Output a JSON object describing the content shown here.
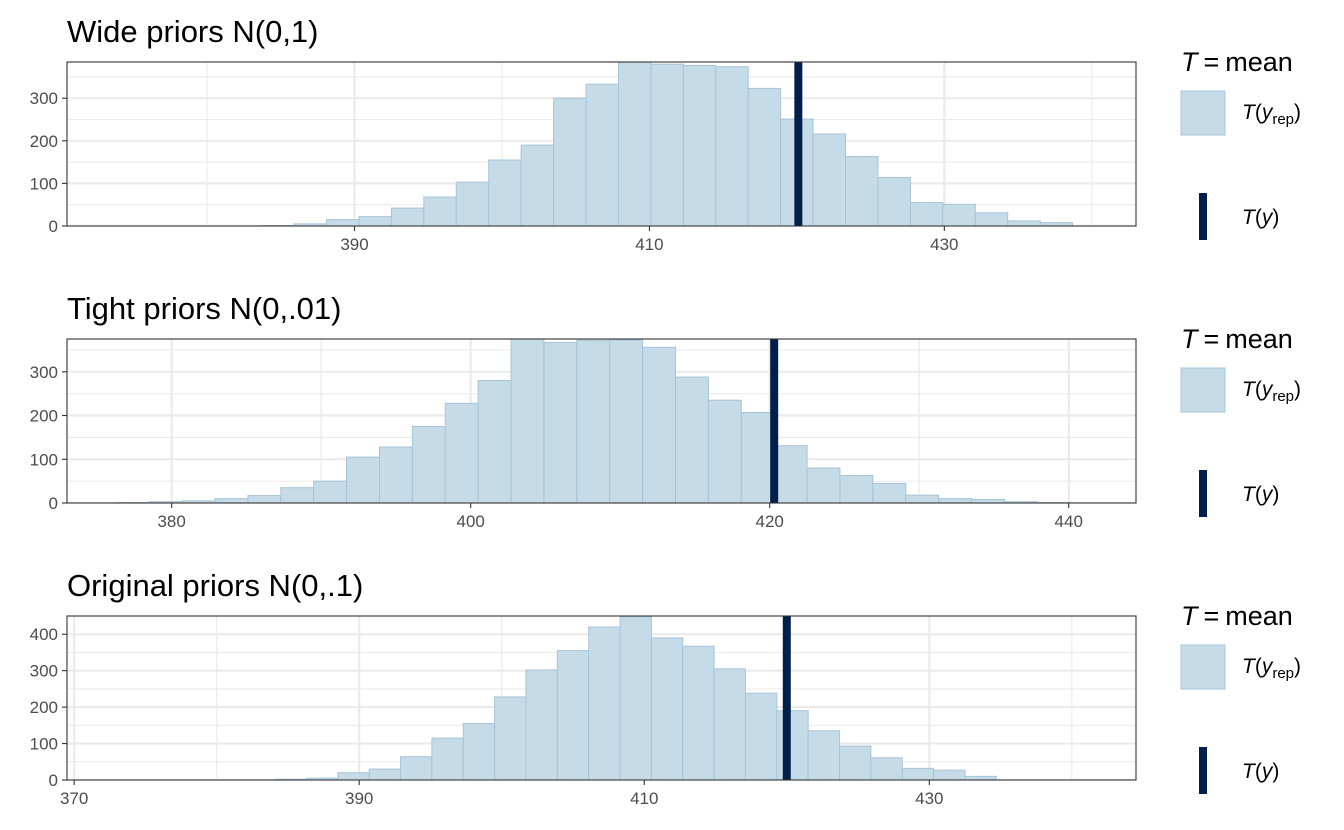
{
  "chart_data": [
    {
      "type": "bar",
      "title": "Wide priors N(0,1)",
      "xlim": [
        370.5,
        443
      ],
      "ylim": [
        0,
        385
      ],
      "x_ticks": [
        390,
        410,
        430
      ],
      "y_ticks": [
        0,
        100,
        200,
        300
      ],
      "bin_width": 2.2,
      "bin_starts": [
        383.7,
        385.9,
        388.1,
        390.3,
        392.5,
        394.7,
        396.9,
        399.1,
        401.3,
        403.5,
        405.7,
        407.9,
        410.1,
        412.3,
        414.5,
        416.7,
        418.9,
        421.1,
        423.3,
        425.5,
        427.7,
        429.9,
        432.1,
        434.3,
        436.5
      ],
      "counts": [
        1,
        5,
        15,
        22,
        42,
        68,
        103,
        155,
        190,
        300,
        333,
        385,
        380,
        377,
        374,
        323,
        251,
        216,
        163,
        114,
        55,
        51,
        31,
        12,
        8
      ],
      "observed_T": 420.1,
      "legend": {
        "T": "T",
        "eq": "=",
        "stat": "mean",
        "rep_item": {
          "fn": "T",
          "var": "y",
          "sub": "rep"
        },
        "obs_item": {
          "fn": "T",
          "var": "y"
        }
      }
    },
    {
      "type": "bar",
      "title": "Tight priors N(0,.01)",
      "xlim": [
        373,
        444.5
      ],
      "ylim": [
        0,
        375
      ],
      "x_ticks": [
        380,
        400,
        420,
        440
      ],
      "y_ticks": [
        0,
        100,
        200,
        300
      ],
      "bin_width": 2.2,
      "bin_starts": [
        376.3,
        378.5,
        380.7,
        382.9,
        385.1,
        387.3,
        389.5,
        391.7,
        393.9,
        396.1,
        398.3,
        400.5,
        402.7,
        404.9,
        407.1,
        409.3,
        411.5,
        413.7,
        415.9,
        418.1,
        420.3,
        422.5,
        424.7,
        426.9,
        429.1,
        431.3,
        433.5,
        435.7,
        437.9
      ],
      "counts": [
        1,
        3,
        5,
        10,
        17,
        35,
        50,
        105,
        128,
        175,
        228,
        280,
        375,
        367,
        372,
        373,
        356,
        288,
        235,
        207,
        131,
        80,
        63,
        45,
        18,
        10,
        8,
        3,
        1
      ],
      "observed_T": 420.3,
      "legend": {
        "T": "T",
        "eq": "=",
        "stat": "mean",
        "rep_item": {
          "fn": "T",
          "var": "y",
          "sub": "rep"
        },
        "obs_item": {
          "fn": "T",
          "var": "y"
        }
      }
    },
    {
      "type": "bar",
      "title": "Original priors N(0,.1)",
      "xlim": [
        369.5,
        444.5
      ],
      "ylim": [
        0,
        450
      ],
      "x_ticks": [
        370,
        390,
        410,
        430
      ],
      "y_ticks": [
        0,
        100,
        200,
        300,
        400
      ],
      "bin_width": 2.2,
      "bin_starts": [
        384.1,
        386.3,
        388.5,
        390.7,
        392.9,
        395.1,
        397.3,
        399.5,
        401.7,
        403.9,
        406.1,
        408.3,
        410.5,
        412.7,
        414.9,
        417.1,
        419.3,
        421.5,
        423.7,
        425.9,
        428.1,
        430.3,
        432.5
      ],
      "counts": [
        2,
        5,
        20,
        30,
        64,
        115,
        155,
        228,
        302,
        355,
        420,
        448,
        390,
        367,
        305,
        238,
        190,
        135,
        93,
        61,
        32,
        27,
        10
      ],
      "observed_T": 420.0,
      "legend": {
        "T": "T",
        "eq": "=",
        "stat": "mean",
        "rep_item": {
          "fn": "T",
          "var": "y",
          "sub": "rep"
        },
        "obs_item": {
          "fn": "T",
          "var": "y"
        }
      }
    }
  ],
  "colors": {
    "bar_fill": "#c6dbe8",
    "bar_stroke": "#a7c4d8",
    "observed_line": "#011f4b",
    "grid": "#ebebeb",
    "axis_text": "#4d4d4d",
    "panel_border": "#333333"
  }
}
